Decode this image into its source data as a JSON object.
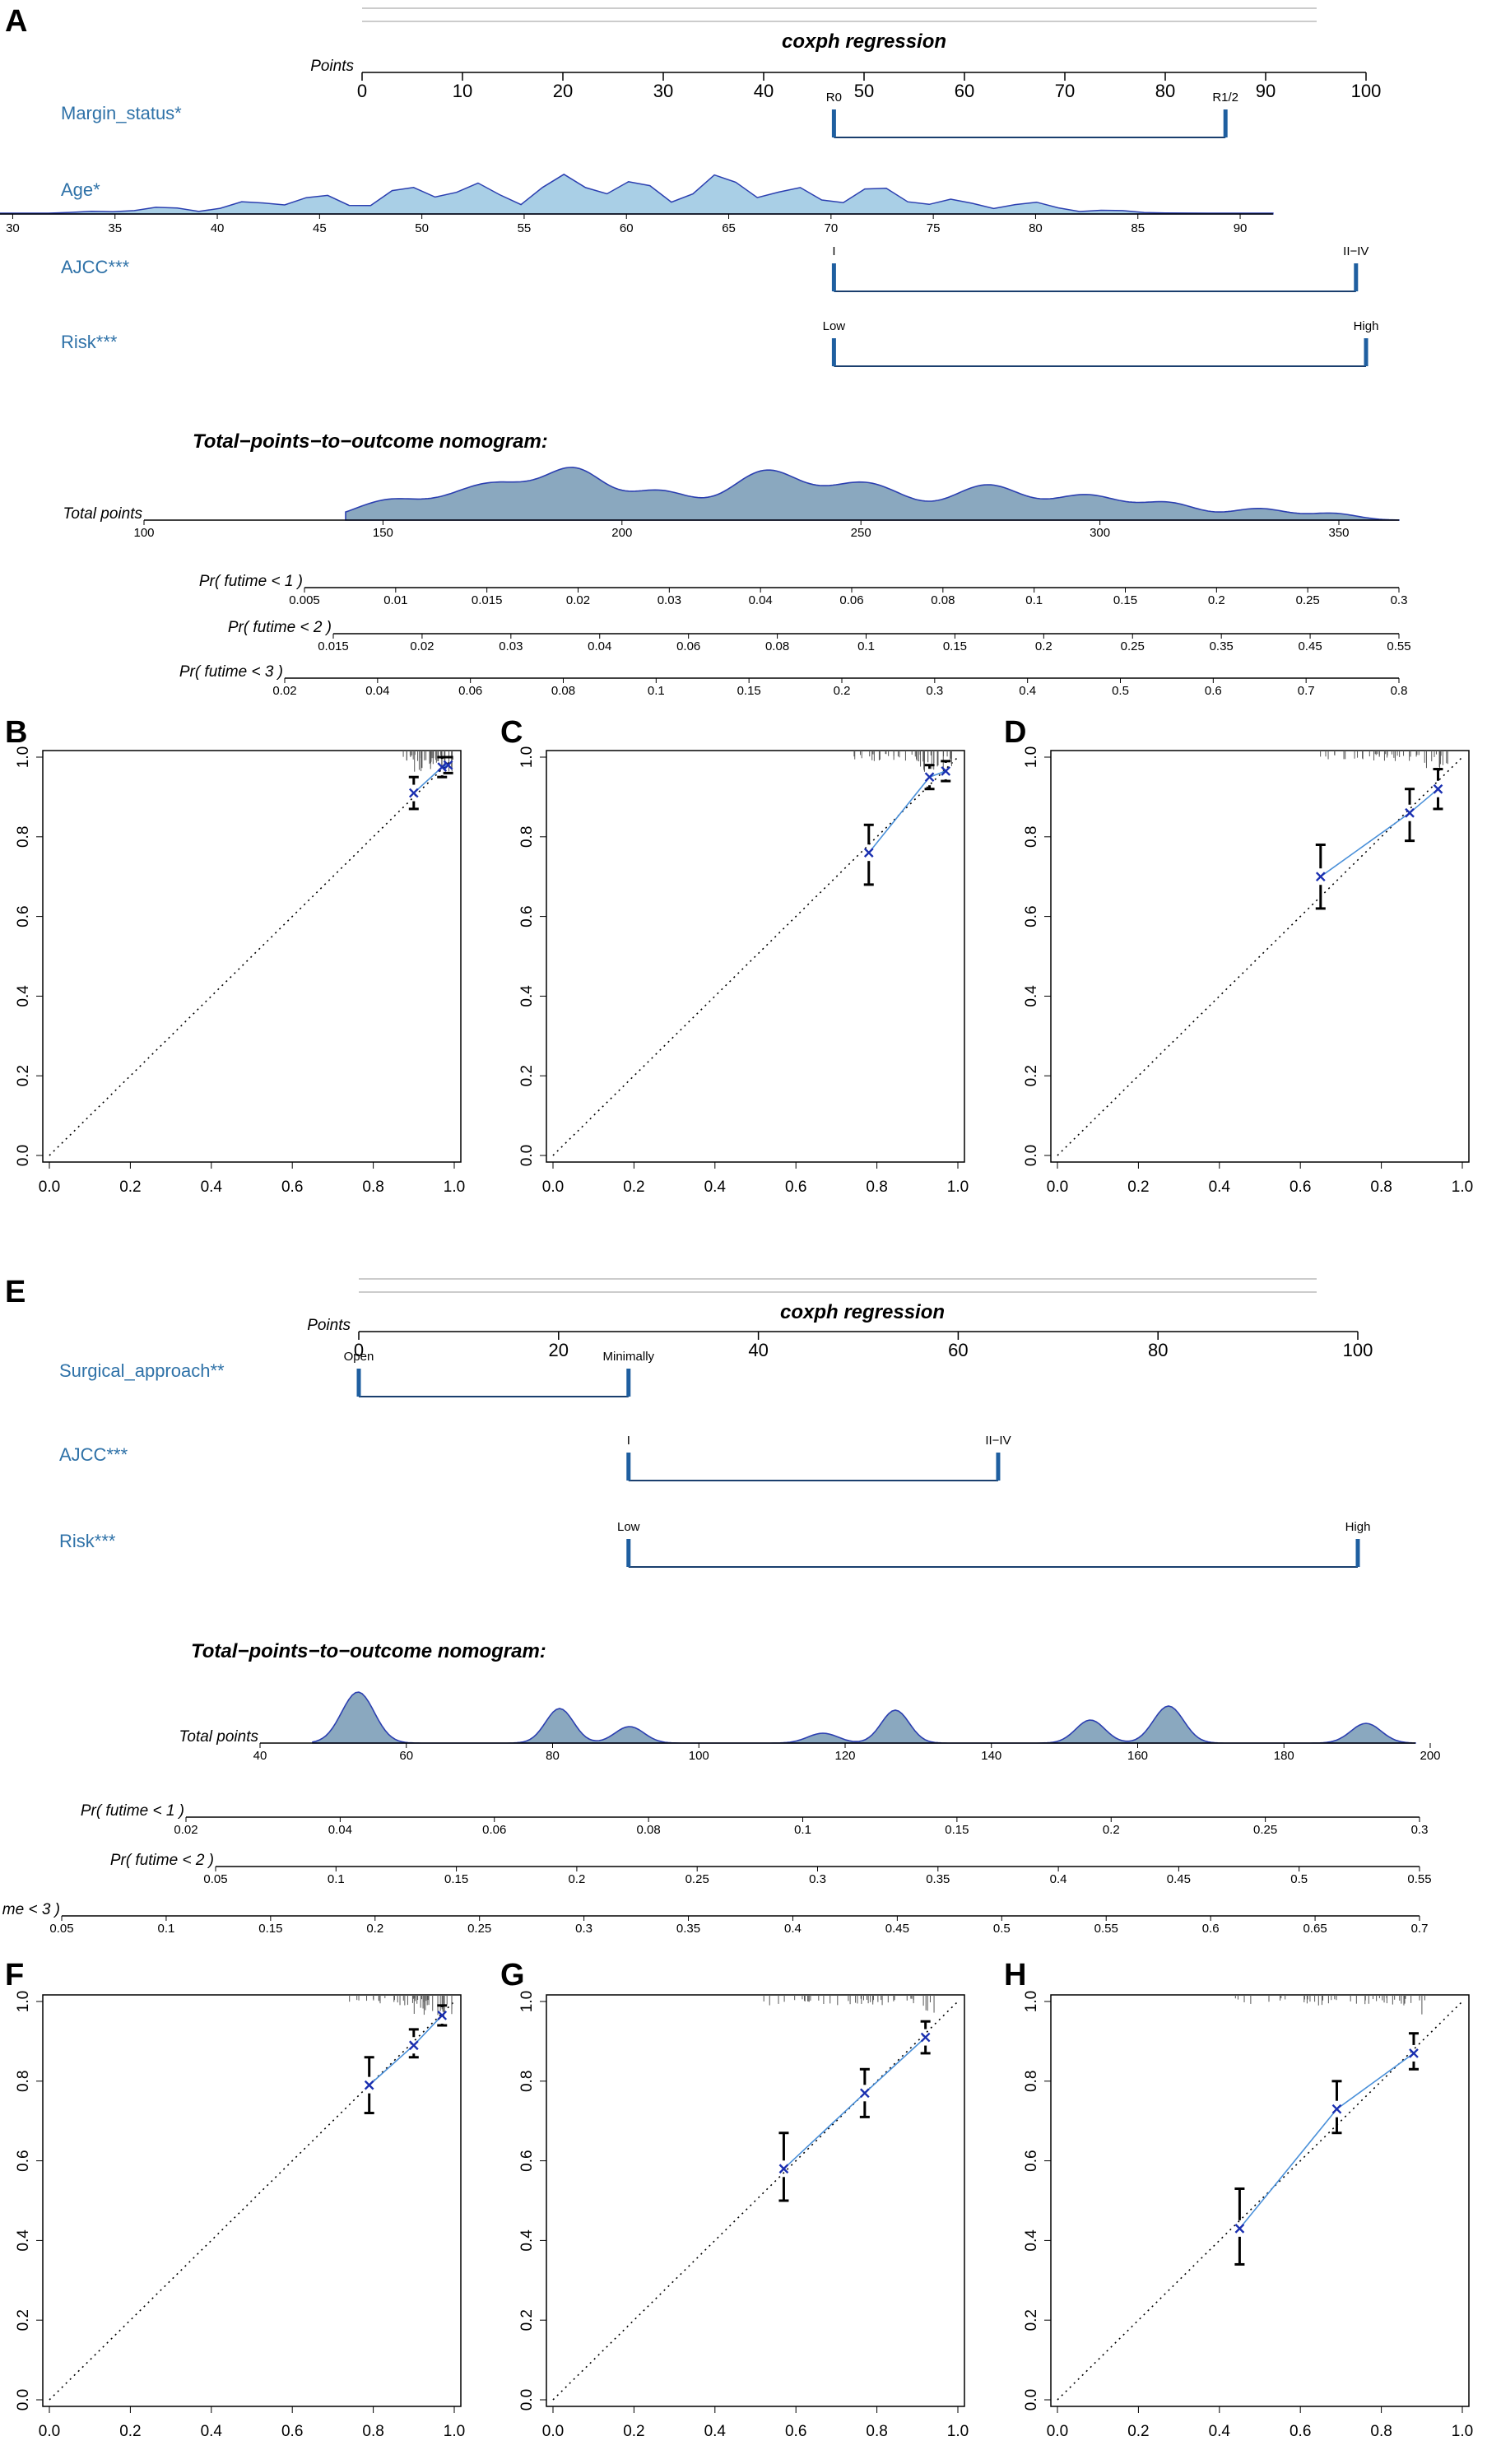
{
  "panels": {
    "A": "A",
    "B": "B",
    "C": "C",
    "D": "D",
    "E": "E",
    "F": "F",
    "G": "G",
    "H": "H"
  },
  "colors": {
    "label": "#2f72a8",
    "bar": "#1f5fa0",
    "density_light": "#a9cfe6",
    "density_dark": "#8aa8bf",
    "density_line": "#2b3fb0",
    "cal_line": "#4a90d9",
    "cal_mark": "#1a2fb0"
  },
  "chart_data": [
    {
      "type": "nomogram",
      "panel": "A",
      "title": "coxph regression",
      "points_axis": {
        "label": "Points",
        "ticks": [
          0,
          10,
          20,
          30,
          40,
          50,
          60,
          70,
          80,
          90,
          100
        ]
      },
      "variables": [
        {
          "name": "Margin_status*",
          "levels": [
            {
              "label": "R0",
              "points": 47
            },
            {
              "label": "R1/2",
              "points": 86
            }
          ]
        },
        {
          "name": "Age*",
          "range": [
            30,
            91
          ],
          "ticks": [
            30,
            35,
            40,
            45,
            50,
            55,
            60,
            65,
            70,
            75,
            80,
            85,
            90
          ]
        },
        {
          "name": "AJCC***",
          "levels": [
            {
              "label": "I",
              "points": 47
            },
            {
              "label": "II−IV",
              "points": 99
            }
          ]
        },
        {
          "name": "Risk***",
          "levels": [
            {
              "label": "Low",
              "points": 47
            },
            {
              "label": "High",
              "points": 100
            }
          ]
        }
      ],
      "total_title": "Total−points−to−outcome nomogram:",
      "total_points": {
        "label": "Total points",
        "ticks": [
          100,
          150,
          200,
          250,
          300,
          350
        ],
        "range": [
          100,
          365
        ]
      },
      "probabilities": [
        {
          "label": "Pr( futime < 1 )",
          "ticks": [
            "0.005",
            "0.01",
            "0.015",
            "0.02",
            "0.03",
            "0.04",
            "0.06",
            "0.08",
            "0.1",
            "0.15",
            "0.2",
            "0.25",
            "0.3"
          ]
        },
        {
          "label": "Pr( futime < 2 )",
          "ticks": [
            "0.015",
            "0.02",
            "0.03",
            "0.04",
            "0.06",
            "0.08",
            "0.1",
            "0.15",
            "0.2",
            "0.25",
            "0.35",
            "0.45",
            "0.55"
          ]
        },
        {
          "label": "Pr( futime < 3 )",
          "ticks": [
            "0.02",
            "0.04",
            "0.06",
            "0.08",
            "0.1",
            "0.15",
            "0.2",
            "0.3",
            "0.4",
            "0.5",
            "0.6",
            "0.7",
            "0.8"
          ]
        }
      ]
    },
    {
      "type": "nomogram",
      "panel": "E",
      "title": "coxph regression",
      "points_axis": {
        "label": "Points",
        "ticks": [
          0,
          20,
          40,
          60,
          80,
          100
        ]
      },
      "variables": [
        {
          "name": "Surgical_approach**",
          "levels": [
            {
              "label": "Open",
              "points": 0
            },
            {
              "label": "Minimally",
              "points": 27
            }
          ]
        },
        {
          "name": "AJCC***",
          "levels": [
            {
              "label": "I",
              "points": 27
            },
            {
              "label": "II−IV",
              "points": 64
            }
          ]
        },
        {
          "name": "Risk***",
          "levels": [
            {
              "label": "Low",
              "points": 27
            },
            {
              "label": "High",
              "points": 100
            }
          ]
        }
      ],
      "total_title": "Total−points−to−outcome nomogram:",
      "total_points": {
        "label": "Total points",
        "ticks": [
          40,
          60,
          80,
          100,
          120,
          140,
          160,
          180,
          200
        ],
        "range": [
          40,
          200
        ]
      },
      "probabilities": [
        {
          "label": "Pr( futime < 1 )",
          "ticks": [
            "0.02",
            "0.04",
            "0.06",
            "0.08",
            "0.1",
            "0.15",
            "0.2",
            "0.25",
            "0.3"
          ]
        },
        {
          "label": "Pr( futime < 2 )",
          "ticks": [
            "0.05",
            "0.1",
            "0.15",
            "0.2",
            "0.25",
            "0.3",
            "0.35",
            "0.4",
            "0.45",
            "0.5",
            "0.55"
          ]
        },
        {
          "label": "me < 3 )",
          "ticks": [
            "0.05",
            "0.1",
            "0.15",
            "0.2",
            "0.25",
            "0.3",
            "0.35",
            "0.4",
            "0.45",
            "0.5",
            "0.55",
            "0.6",
            "0.65",
            "0.7"
          ]
        }
      ]
    },
    {
      "type": "scatter",
      "panel": "B",
      "xlim": [
        0,
        1
      ],
      "ylim": [
        0,
        1
      ],
      "xticks": [
        "0.0",
        "0.2",
        "0.4",
        "0.6",
        "0.8",
        "1.0"
      ],
      "yticks": [
        "0.0",
        "0.2",
        "0.4",
        "0.6",
        "0.8",
        "1.0"
      ],
      "points": [
        {
          "x": 0.9,
          "y": 0.91,
          "lo": 0.87,
          "hi": 0.95
        },
        {
          "x": 0.97,
          "y": 0.975,
          "lo": 0.95,
          "hi": 1.0
        },
        {
          "x": 0.985,
          "y": 0.98,
          "lo": 0.96,
          "hi": 1.0
        }
      ]
    },
    {
      "type": "scatter",
      "panel": "C",
      "xlim": [
        0,
        1
      ],
      "ylim": [
        0,
        1
      ],
      "xticks": [
        "0.0",
        "0.2",
        "0.4",
        "0.6",
        "0.8",
        "1.0"
      ],
      "yticks": [
        "0.0",
        "0.2",
        "0.4",
        "0.6",
        "0.8",
        "1.0"
      ],
      "points": [
        {
          "x": 0.78,
          "y": 0.76,
          "lo": 0.68,
          "hi": 0.83
        },
        {
          "x": 0.93,
          "y": 0.95,
          "lo": 0.92,
          "hi": 0.98
        },
        {
          "x": 0.97,
          "y": 0.965,
          "lo": 0.94,
          "hi": 0.99
        }
      ]
    },
    {
      "type": "scatter",
      "panel": "D",
      "xlim": [
        0,
        1
      ],
      "ylim": [
        0,
        1
      ],
      "xticks": [
        "0.0",
        "0.2",
        "0.4",
        "0.6",
        "0.8",
        "1.0"
      ],
      "yticks": [
        "0.0",
        "0.2",
        "0.4",
        "0.6",
        "0.8",
        "1.0"
      ],
      "points": [
        {
          "x": 0.65,
          "y": 0.7,
          "lo": 0.62,
          "hi": 0.78
        },
        {
          "x": 0.87,
          "y": 0.86,
          "lo": 0.79,
          "hi": 0.92
        },
        {
          "x": 0.94,
          "y": 0.92,
          "lo": 0.87,
          "hi": 0.97
        }
      ]
    },
    {
      "type": "scatter",
      "panel": "F",
      "xlim": [
        0,
        1
      ],
      "ylim": [
        0,
        1
      ],
      "xticks": [
        "0.0",
        "0.2",
        "0.4",
        "0.6",
        "0.8",
        "1.0"
      ],
      "yticks": [
        "0.0",
        "0.2",
        "0.4",
        "0.6",
        "0.8",
        "1.0"
      ],
      "points": [
        {
          "x": 0.79,
          "y": 0.79,
          "lo": 0.72,
          "hi": 0.86
        },
        {
          "x": 0.9,
          "y": 0.89,
          "lo": 0.86,
          "hi": 0.93
        },
        {
          "x": 0.97,
          "y": 0.965,
          "lo": 0.94,
          "hi": 0.99
        }
      ]
    },
    {
      "type": "scatter",
      "panel": "G",
      "xlim": [
        0,
        1
      ],
      "ylim": [
        0,
        1
      ],
      "xticks": [
        "0.0",
        "0.2",
        "0.4",
        "0.6",
        "0.8",
        "1.0"
      ],
      "yticks": [
        "0.0",
        "0.2",
        "0.4",
        "0.6",
        "0.8",
        "1.0"
      ],
      "points": [
        {
          "x": 0.57,
          "y": 0.58,
          "lo": 0.5,
          "hi": 0.67
        },
        {
          "x": 0.77,
          "y": 0.77,
          "lo": 0.71,
          "hi": 0.83
        },
        {
          "x": 0.92,
          "y": 0.91,
          "lo": 0.87,
          "hi": 0.95
        }
      ]
    },
    {
      "type": "scatter",
      "panel": "H",
      "xlim": [
        0,
        1
      ],
      "ylim": [
        0,
        1
      ],
      "xticks": [
        "0.0",
        "0.2",
        "0.4",
        "0.6",
        "0.8",
        "1.0"
      ],
      "yticks": [
        "0.0",
        "0.2",
        "0.4",
        "0.6",
        "0.8",
        "1.0"
      ],
      "points": [
        {
          "x": 0.45,
          "y": 0.43,
          "lo": 0.34,
          "hi": 0.53
        },
        {
          "x": 0.69,
          "y": 0.73,
          "lo": 0.67,
          "hi": 0.8
        },
        {
          "x": 0.88,
          "y": 0.87,
          "lo": 0.83,
          "hi": 0.92
        }
      ]
    }
  ]
}
